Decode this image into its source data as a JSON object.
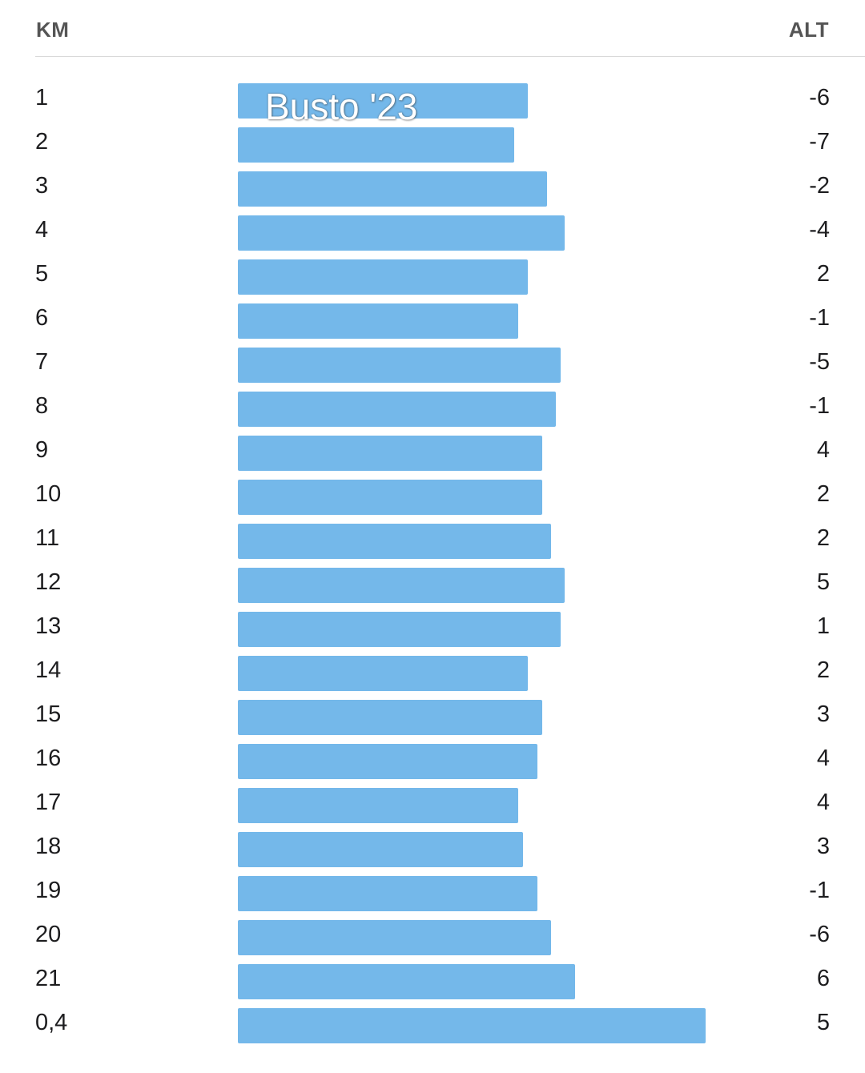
{
  "header": {
    "km_label": "KM",
    "alt_label": "ALT"
  },
  "overlay": {
    "title": "Busto '23"
  },
  "colors": {
    "bar": "#74b8ea",
    "divider": "#d9d9d9"
  },
  "chart_data": {
    "type": "bar",
    "orientation": "horizontal",
    "categories": [
      "1",
      "2",
      "3",
      "4",
      "5",
      "6",
      "7",
      "8",
      "9",
      "10",
      "11",
      "12",
      "13",
      "14",
      "15",
      "16",
      "17",
      "18",
      "19",
      "20",
      "21",
      "0,4"
    ],
    "values": [
      6.17,
      5.89,
      6.58,
      6.97,
      6.17,
      5.98,
      6.87,
      6.78,
      6.48,
      6.48,
      6.68,
      6.97,
      6.87,
      6.17,
      6.48,
      6.38,
      5.98,
      6.07,
      6.38,
      6.68,
      7.18,
      9.97
    ],
    "alt": [
      "-6",
      "-7",
      "-2",
      "-4",
      "2",
      "-1",
      "-5",
      "-1",
      "4",
      "2",
      "2",
      "5",
      "1",
      "2",
      "3",
      "4",
      "4",
      "3",
      "-1",
      "-6",
      "6",
      "5"
    ],
    "xlim": [
      0,
      10
    ],
    "grid": false
  }
}
